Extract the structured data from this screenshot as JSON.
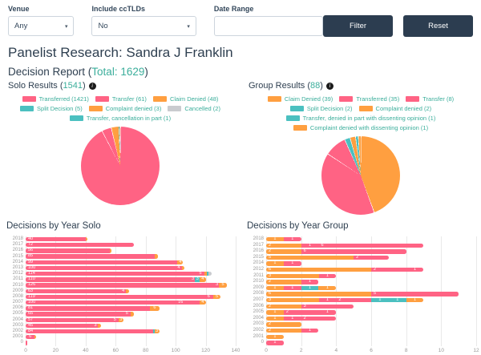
{
  "filters": {
    "venue": {
      "label": "Venue",
      "value": "Any"
    },
    "cctlds": {
      "label": "Include ccTLDs",
      "value": "No"
    },
    "date_range": {
      "label": "Date Range",
      "value": ""
    },
    "filter_button": "Filter",
    "reset_button": "Reset"
  },
  "header": {
    "title": "Panelist Research: Sandra J Franklin",
    "report_label": "Decision Report",
    "total_label": "Total: 1629"
  },
  "solo": {
    "title": "Solo Results",
    "count": "1541",
    "legend": [
      {
        "label": "Transferred (1421)",
        "color": "pink"
      },
      {
        "label": "Transfer (61)",
        "color": "pink"
      },
      {
        "label": "Claim Denied (48)",
        "color": "orange"
      },
      {
        "label": "Split Decision (5)",
        "color": "teal"
      },
      {
        "label": "Complaint denied (3)",
        "color": "orange"
      },
      {
        "label": "Cancelled (2)",
        "color": "gray"
      },
      {
        "label": "Transfer, cancellation in part (1)",
        "color": "teal"
      }
    ]
  },
  "group": {
    "title": "Group Results",
    "count": "88",
    "legend": [
      {
        "label": "Claim Denied (39)",
        "color": "orange"
      },
      {
        "label": "Transferred (35)",
        "color": "pink"
      },
      {
        "label": "Transfer (8)",
        "color": "pink"
      },
      {
        "label": "Split Decision (2)",
        "color": "teal"
      },
      {
        "label": "Complaint denied (2)",
        "color": "orange"
      },
      {
        "label": "Transfer, denied in part with dissenting opinion (1)",
        "color": "teal"
      },
      {
        "label": "Complaint denied with dissenting opinion (1)",
        "color": "orange"
      }
    ]
  },
  "colors": {
    "pink": "#FF6384",
    "orange": "#FF9F40",
    "teal": "#4BC0C0",
    "gray": "#C9CBCF",
    "accent": "#3bae9b",
    "navy": "#2e3f50"
  },
  "chart_data": [
    {
      "id": "solo-pie",
      "type": "pie",
      "title": "Solo Results",
      "labels": [
        "Transferred",
        "Transfer",
        "Claim Denied",
        "Split Decision",
        "Complaint denied",
        "Cancelled",
        "Transfer, cancellation in part"
      ],
      "values": [
        1421,
        61,
        48,
        5,
        3,
        2,
        1
      ],
      "colors": [
        "pink",
        "pink",
        "orange",
        "teal",
        "orange",
        "gray",
        "teal"
      ]
    },
    {
      "id": "group-pie",
      "type": "pie",
      "title": "Group Results",
      "labels": [
        "Claim Denied",
        "Transferred",
        "Transfer",
        "Split Decision",
        "Complaint denied",
        "Transfer, denied in part with dissenting opinion",
        "Complaint denied with dissenting opinion"
      ],
      "values": [
        39,
        35,
        8,
        2,
        2,
        1,
        1
      ],
      "colors": [
        "orange",
        "pink",
        "pink",
        "teal",
        "orange",
        "teal",
        "orange"
      ]
    },
    {
      "id": "solo-bars",
      "type": "bar",
      "title": "Decisions by Year Solo",
      "orientation": "horizontal",
      "stacked": true,
      "grid": true,
      "xlim": [
        0,
        140
      ],
      "ticks": [
        0,
        20,
        40,
        60,
        80,
        100,
        120,
        140
      ],
      "row_height": 7.2,
      "years": [
        "2018",
        "2017",
        "2016",
        "2015",
        "2014",
        "2013",
        "2012",
        "2011",
        "2010",
        "2009",
        "2008",
        "2007",
        "2006",
        "2005",
        "2004",
        "2003",
        "2002",
        "2001",
        "0"
      ],
      "rows": [
        [
          [
            40,
            "pink"
          ],
          [
            1,
            "orange"
          ]
        ],
        [
          [
            72,
            "pink"
          ]
        ],
        [
          [
            56,
            "pink"
          ],
          [
            1,
            "orange"
          ]
        ],
        [
          [
            85,
            "pink"
          ],
          [
            1,
            "pink"
          ],
          [
            2,
            "orange"
          ]
        ],
        [
          [
            99,
            "pink"
          ],
          [
            2,
            "pink"
          ],
          [
            4,
            "orange"
          ]
        ],
        [
          [
            100,
            "pink"
          ],
          [
            4,
            "pink"
          ],
          [
            2,
            "orange"
          ]
        ],
        [
          [
            114,
            "pink"
          ],
          [
            5,
            "pink"
          ],
          [
            2,
            "orange"
          ],
          [
            1,
            "teal"
          ],
          [
            2,
            "gray"
          ]
        ],
        [
          [
            110,
            "pink"
          ],
          [
            3,
            "pink"
          ],
          [
            3,
            "teal"
          ],
          [
            4,
            "orange"
          ]
        ],
        [
          [
            126,
            "pink"
          ],
          [
            3,
            "pink"
          ],
          [
            5,
            "orange"
          ]
        ],
        [
          [
            63,
            "pink"
          ],
          [
            4,
            "pink"
          ],
          [
            2,
            "orange"
          ]
        ],
        [
          [
            119,
            "pink"
          ],
          [
            6,
            "pink"
          ],
          [
            5,
            "orange"
          ]
        ],
        [
          [
            100,
            "pink"
          ],
          [
            16,
            "pink"
          ],
          [
            4,
            "orange"
          ]
        ],
        [
          [
            81,
            "pink"
          ],
          [
            2,
            "pink"
          ],
          [
            6,
            "orange"
          ]
        ],
        [
          [
            65,
            "pink"
          ],
          [
            5,
            "pink"
          ],
          [
            2,
            "orange"
          ]
        ],
        [
          [
            57,
            "pink"
          ],
          [
            5,
            "pink"
          ],
          [
            3,
            "orange"
          ]
        ],
        [
          [
            45,
            "pink"
          ],
          [
            3,
            "pink"
          ],
          [
            2,
            "orange"
          ]
        ],
        [
          [
            84,
            "pink"
          ],
          [
            1,
            "pink"
          ],
          [
            1,
            "teal"
          ],
          [
            3,
            "orange"
          ]
        ],
        [
          [
            6,
            "pink"
          ],
          [
            1,
            "orange"
          ]
        ],
        [
          [
            1,
            "pink"
          ]
        ]
      ]
    },
    {
      "id": "group-bars",
      "type": "bar",
      "title": "Decisions by Year Group",
      "orientation": "horizontal",
      "stacked": true,
      "grid": true,
      "xlim": [
        0,
        12
      ],
      "ticks": [
        0,
        2,
        4,
        6,
        8,
        10,
        12
      ],
      "row_height": 7.6,
      "years": [
        "2018",
        "2017",
        "2016",
        "2015",
        "2014",
        "2012",
        "2011",
        "2010",
        "2009",
        "2008",
        "2007",
        "2006",
        "2005",
        "2004",
        "2003",
        "2002",
        "2001",
        "0"
      ],
      "rows": [
        [
          [
            1,
            "orange"
          ],
          [
            1,
            "pink"
          ]
        ],
        [
          [
            2,
            "orange"
          ],
          [
            1,
            "pink"
          ],
          [
            6,
            "pink"
          ]
        ],
        [
          [
            2,
            "orange"
          ],
          [
            6,
            "pink"
          ]
        ],
        [
          [
            5,
            "orange"
          ],
          [
            2,
            "pink"
          ]
        ],
        [
          [
            1,
            "orange"
          ],
          [
            1,
            "pink"
          ]
        ],
        [
          [
            6,
            "orange"
          ],
          [
            2,
            "pink"
          ],
          [
            1,
            "pink"
          ]
        ],
        [
          [
            3,
            "orange"
          ],
          [
            1,
            "pink"
          ]
        ],
        [
          [
            2,
            "orange"
          ],
          [
            1,
            "pink"
          ]
        ],
        [
          [
            1,
            "orange"
          ],
          [
            1,
            "pink"
          ],
          [
            1,
            "teal"
          ],
          [
            1,
            "orange"
          ]
        ],
        [
          [
            6,
            "orange"
          ],
          [
            5,
            "pink"
          ]
        ],
        [
          [
            3,
            "orange"
          ],
          [
            1,
            "pink"
          ],
          [
            2,
            "pink"
          ],
          [
            1,
            "teal"
          ],
          [
            1,
            "teal"
          ],
          [
            1,
            "orange"
          ]
        ],
        [
          [
            2,
            "orange"
          ],
          [
            3,
            "pink"
          ]
        ],
        [
          [
            1,
            "orange"
          ],
          [
            2,
            "pink"
          ],
          [
            1,
            "pink"
          ]
        ],
        [
          [
            1,
            "orange"
          ],
          [
            1,
            "pink"
          ],
          [
            2,
            "pink"
          ]
        ],
        [
          [
            2,
            "orange"
          ]
        ],
        [
          [
            2,
            "orange"
          ],
          [
            1,
            "pink"
          ]
        ],
        [
          [
            1,
            "orange"
          ]
        ],
        [
          [
            1,
            "pink"
          ]
        ]
      ]
    }
  ]
}
